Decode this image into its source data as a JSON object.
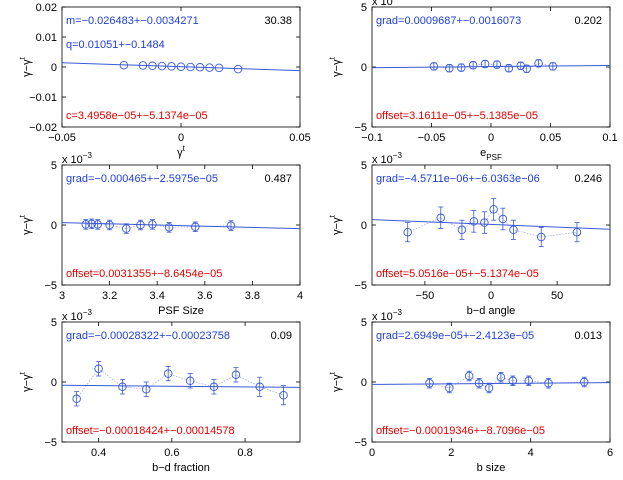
{
  "colors": {
    "blue": "#1f3fd6",
    "red": "#e00000",
    "axis": "#000000",
    "line": "#3a5ad6",
    "gray": "#9aa8e6"
  },
  "chart_data": [
    {
      "type": "scatter",
      "xlabel": "γ^t",
      "ylabel": "γ−γ^t",
      "exponent": "",
      "xlim": [
        -0.05,
        0.05
      ],
      "ylim": [
        -0.02,
        0.02
      ],
      "xticks": [
        -0.05,
        0,
        0.05
      ],
      "xtick_labels": [
        "−0.05",
        "0",
        "0.05"
      ],
      "yticks": [
        -0.02,
        -0.01,
        0,
        0.01,
        0.02
      ],
      "ytick_labels": [
        "−0.02",
        "−0.01",
        "0",
        "0.01",
        "0.02"
      ],
      "blue_text": [
        "m=−0.026483+−0.0034271",
        "q=0.01051+−0.1484"
      ],
      "red_text": "c=3.4958e−05+−5.1374e−05",
      "value_label": "30.38",
      "fit": {
        "x": [
          -0.05,
          0.05
        ],
        "y": [
          0.0014,
          -0.0012
        ]
      },
      "points": {
        "x": [
          -0.024,
          -0.016,
          -0.012,
          -0.008,
          -0.004,
          0.0,
          0.004,
          0.008,
          0.012,
          0.016,
          0.024
        ],
        "y": [
          0.0006,
          0.0005,
          0.0004,
          0.0003,
          0.0002,
          0.0001,
          0.0,
          -0.0001,
          -0.0002,
          -0.0003,
          -0.0007
        ],
        "err": [
          0,
          0,
          0,
          0,
          0,
          0,
          0,
          0,
          0,
          0,
          0
        ]
      }
    },
    {
      "type": "scatter",
      "xlabel": "e_PSF",
      "ylabel": "γ−γ^t",
      "exponent": "x 10^−3",
      "xlim": [
        -0.1,
        0.1
      ],
      "ylim": [
        -5,
        5
      ],
      "xticks": [
        -0.1,
        -0.05,
        0,
        0.05,
        0.1
      ],
      "xtick_labels": [
        "−0.1",
        "−0.05",
        "0",
        "0.05",
        "0.1"
      ],
      "yticks": [
        -5,
        0,
        5
      ],
      "ytick_labels": [
        "−5",
        "0",
        "5"
      ],
      "blue_text": [
        "grad=0.0009687+−0.0016073"
      ],
      "red_text": "offset=3.1611e−05+−5.1385e−05",
      "value_label": "0.202",
      "fit": {
        "x": [
          -0.1,
          0.1
        ],
        "y": [
          -0.06,
          0.13
        ]
      },
      "points": {
        "x": [
          -0.048,
          -0.035,
          -0.025,
          -0.015,
          -0.005,
          0.005,
          0.015,
          0.025,
          0.03,
          0.04,
          0.052
        ],
        "y": [
          0.05,
          -0.1,
          -0.05,
          0.15,
          0.25,
          0.2,
          -0.1,
          0.1,
          -0.15,
          0.3,
          0.05
        ],
        "err": [
          0.3,
          0.3,
          0.3,
          0.3,
          0.3,
          0.3,
          0.3,
          0.3,
          0.3,
          0.3,
          0.3
        ]
      }
    },
    {
      "type": "scatter",
      "xlabel": "PSF Size",
      "ylabel": "γ−γ^t",
      "exponent": "x 10^−3",
      "xlim": [
        3,
        4
      ],
      "ylim": [
        -5,
        5
      ],
      "xticks": [
        3,
        3.2,
        3.4,
        3.6,
        3.8,
        4
      ],
      "xtick_labels": [
        "3",
        "3.2",
        "3.4",
        "3.6",
        "3.8",
        "4"
      ],
      "yticks": [
        -5,
        0,
        5
      ],
      "ytick_labels": [
        "−5",
        "0",
        "5"
      ],
      "blue_text": [
        "grad=−0.000465+−2.5975e−05"
      ],
      "red_text": "offset=0.0031355+−8.6454e−05",
      "value_label": "0.487",
      "fit": {
        "x": [
          3,
          4
        ],
        "y": [
          0.2,
          -0.3
        ]
      },
      "points": {
        "x": [
          3.1,
          3.125,
          3.15,
          3.2,
          3.27,
          3.33,
          3.38,
          3.45,
          3.56,
          3.71
        ],
        "y": [
          0.05,
          0.1,
          0.05,
          0.0,
          -0.3,
          0.0,
          0.05,
          -0.2,
          -0.15,
          -0.05
        ],
        "err": [
          0.4,
          0.4,
          0.4,
          0.4,
          0.4,
          0.4,
          0.4,
          0.4,
          0.4,
          0.4
        ]
      }
    },
    {
      "type": "scatter",
      "xlabel": "b−d angle",
      "ylabel": "γ−γ^t",
      "exponent": "x 10^−3",
      "xlim": [
        -90,
        90
      ],
      "ylim": [
        -5,
        5
      ],
      "xticks": [
        -50,
        0,
        50
      ],
      "xtick_labels": [
        "−50",
        "0",
        "50"
      ],
      "yticks": [
        -5,
        0,
        5
      ],
      "ytick_labels": [
        "−5",
        "0",
        "5"
      ],
      "blue_text": [
        "grad=−4.5711e−06+−6.0363e−06"
      ],
      "red_text": "offset=5.0516e−05+−5.1374e−05",
      "value_label": "0.246",
      "fit": {
        "x": [
          -90,
          90
        ],
        "y": [
          0.45,
          -0.35
        ]
      },
      "points": {
        "x": [
          -63,
          -38,
          -22,
          -13,
          -5,
          2,
          9,
          17,
          38,
          65
        ],
        "y": [
          -0.6,
          0.6,
          -0.4,
          0.3,
          0.2,
          1.3,
          0.5,
          -0.4,
          -1.0,
          -0.6
        ],
        "err": [
          0.8,
          0.9,
          0.8,
          0.9,
          0.9,
          0.9,
          0.9,
          0.8,
          0.8,
          0.8
        ]
      }
    },
    {
      "type": "scatter",
      "xlabel": "b−d fraction",
      "ylabel": "γ−γ^t",
      "exponent": "x 10^−3",
      "xlim": [
        0.3,
        0.95
      ],
      "ylim": [
        -5,
        5
      ],
      "xticks": [
        0.4,
        0.6,
        0.8
      ],
      "xtick_labels": [
        "0.4",
        "0.6",
        "0.8"
      ],
      "yticks": [
        -5,
        0,
        5
      ],
      "ytick_labels": [
        "−5",
        "0",
        "5"
      ],
      "blue_text": [
        "grad=−0.00028322+−0.00023758"
      ],
      "red_text": "offset=−0.00018424+−0.00014578",
      "value_label": "0.09",
      "fit": {
        "x": [
          0.3,
          0.95
        ],
        "y": [
          -0.27,
          -0.45
        ]
      },
      "points": {
        "x": [
          0.34,
          0.4,
          0.465,
          0.53,
          0.59,
          0.65,
          0.715,
          0.775,
          0.84,
          0.905
        ],
        "y": [
          -1.4,
          1.1,
          -0.4,
          -0.6,
          0.7,
          0.1,
          -0.4,
          0.6,
          -0.4,
          -1.1
        ],
        "err": [
          0.6,
          0.6,
          0.6,
          0.6,
          0.6,
          0.6,
          0.6,
          0.6,
          0.8,
          0.8
        ]
      }
    },
    {
      "type": "scatter",
      "xlabel": "b size",
      "ylabel": "γ−γ^t",
      "exponent": "x 10^−3",
      "xlim": [
        0,
        6
      ],
      "ylim": [
        -5,
        5
      ],
      "xticks": [
        0,
        2,
        4,
        6
      ],
      "xtick_labels": [
        "0",
        "2",
        "4",
        "6"
      ],
      "yticks": [
        -5,
        0,
        5
      ],
      "ytick_labels": [
        "−5",
        "0",
        "5"
      ],
      "blue_text": [
        "grad=2.6949e−05+−2.4123e−05"
      ],
      "red_text": "offset=−0.00019346+−8.7096e−05",
      "value_label": "0.013",
      "fit": {
        "x": [
          0,
          6
        ],
        "y": [
          -0.2,
          -0.05
        ]
      },
      "points": {
        "x": [
          1.45,
          1.95,
          2.45,
          2.7,
          2.95,
          3.25,
          3.55,
          3.95,
          4.45,
          5.35
        ],
        "y": [
          -0.1,
          -0.5,
          0.5,
          -0.1,
          -0.5,
          0.4,
          0.1,
          0.1,
          -0.1,
          0.0
        ],
        "err": [
          0.4,
          0.4,
          0.4,
          0.4,
          0.4,
          0.4,
          0.4,
          0.4,
          0.4,
          0.4
        ]
      }
    }
  ]
}
